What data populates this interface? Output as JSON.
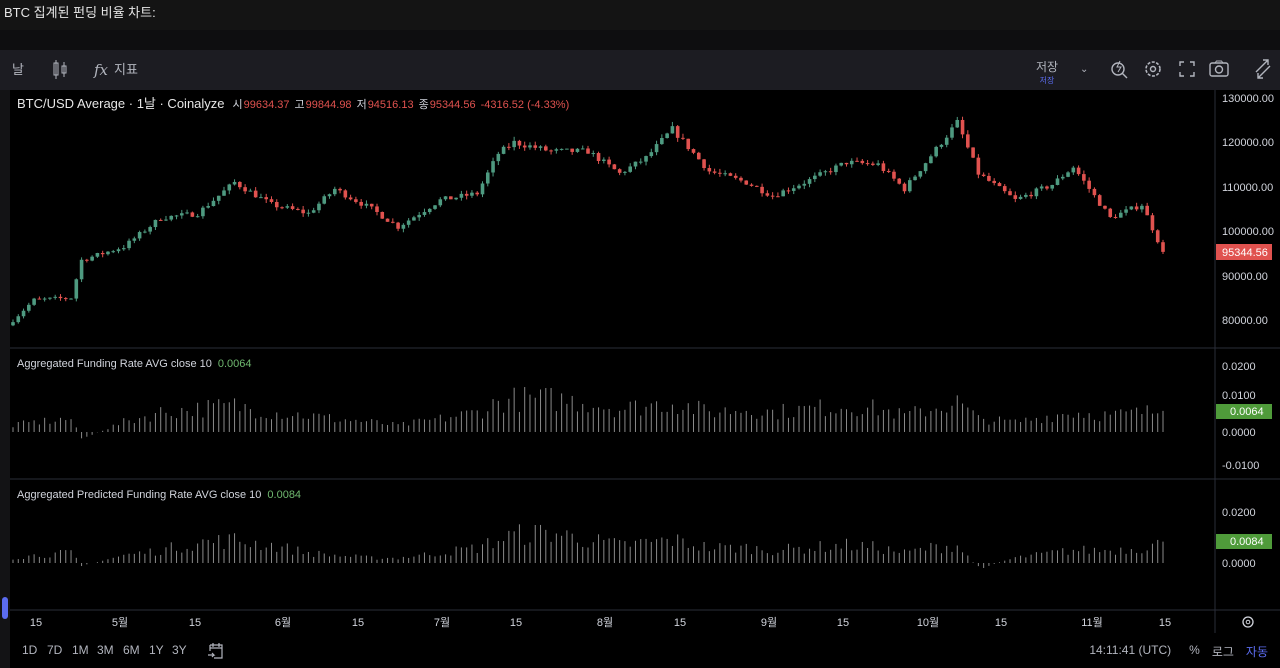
{
  "title": "BTC 집계된 펀딩 비율 차트:",
  "toolbar": {
    "interval": "날",
    "indicators": "지표",
    "save": "저장",
    "save_sub": "저장"
  },
  "legend": {
    "symbol": "BTC/USD Average · 1날 · Coinalyze",
    "o_label": "시",
    "o": "99634.37",
    "h_label": "고",
    "h": "99844.98",
    "l_label": "저",
    "l": "94516.13",
    "c_label": "종",
    "c": "95344.56",
    "change": "-4316.52 (-4.33%)"
  },
  "panels": {
    "funding": {
      "label": "Aggregated Funding Rate AVG close 10",
      "value": "0.0064",
      "ticks": [
        "0.0200",
        "0.0100",
        "0.0000",
        "-0.0100"
      ]
    },
    "predicted": {
      "label": "Aggregated Predicted Funding Rate AVG close 10",
      "value": "0.0084",
      "ticks": [
        "0.0200",
        "0.0000"
      ]
    }
  },
  "price_axis": {
    "ticks": [
      "130000.00",
      "120000.00",
      "110000.00",
      "100000.00",
      "90000.00",
      "80000.00"
    ],
    "last": "95344.56"
  },
  "time_axis": [
    "15",
    "5월",
    "15",
    "6월",
    "15",
    "7월",
    "15",
    "8월",
    "15",
    "9월",
    "15",
    "10월",
    "15",
    "11월",
    "15"
  ],
  "bottom": {
    "ranges": [
      "1D",
      "7D",
      "1M",
      "3M",
      "6M",
      "1Y",
      "3Y"
    ],
    "time": "14:11:41 (UTC)",
    "percent": "%",
    "log": "로그",
    "auto": "자동"
  },
  "colors": {
    "up": "#4e9a80",
    "down": "#e0524f",
    "bar": "#8a8a8a",
    "value_badge": "#4f9b3a",
    "accent": "#5b6cf0"
  },
  "chart_data": {
    "type": "candlestick",
    "note": "weekly anchor closes, daily candles interpolated",
    "anchor_days": [
      0,
      4,
      11,
      13,
      21,
      28,
      35,
      42,
      49,
      56,
      61,
      68,
      73,
      81,
      88,
      92,
      95,
      102,
      109,
      115,
      120,
      125,
      132,
      139,
      144,
      151,
      158,
      164,
      169,
      174,
      179,
      183,
      190,
      197,
      201,
      208,
      214,
      218
    ],
    "anchor_close": [
      80000,
      84500,
      85000,
      93500,
      96500,
      103000,
      104000,
      111000,
      106000,
      104000,
      109500,
      105000,
      101000,
      107000,
      108500,
      117500,
      120000,
      118000,
      118000,
      113000,
      116500,
      123000,
      113500,
      111000,
      108000,
      111500,
      115500,
      115000,
      109500,
      117000,
      124500,
      113000,
      107000,
      110500,
      114500,
      103000,
      106000,
      95344
    ],
    "yrange": [
      75000,
      132000
    ],
    "funding_weekly": [
      0.002,
      0.003,
      0.004,
      -0.002,
      0.003,
      0.006,
      0.007,
      0.008,
      0.006,
      0.005,
      0.004,
      0.003,
      0.002,
      0.004,
      0.006,
      0.009,
      0.01,
      0.01,
      0.009,
      0.007,
      0.008,
      0.009,
      0.006,
      0.007,
      0.006,
      0.007,
      0.008,
      0.007,
      0.005,
      0.007,
      0.009,
      0.004,
      0.003,
      0.005,
      0.006,
      0.005,
      0.006,
      0.0064
    ],
    "predicted_weekly": [
      0.002,
      0.003,
      0.004,
      -0.001,
      0.003,
      0.005,
      0.008,
      0.009,
      0.007,
      0.004,
      0.003,
      0.002,
      0.002,
      0.004,
      0.006,
      0.009,
      0.011,
      0.012,
      0.009,
      0.007,
      0.008,
      0.009,
      0.006,
      0.006,
      0.005,
      0.006,
      0.007,
      0.006,
      0.004,
      0.006,
      0.007,
      -0.002,
      0.002,
      0.004,
      0.005,
      0.005,
      0.006,
      0.0084
    ]
  }
}
